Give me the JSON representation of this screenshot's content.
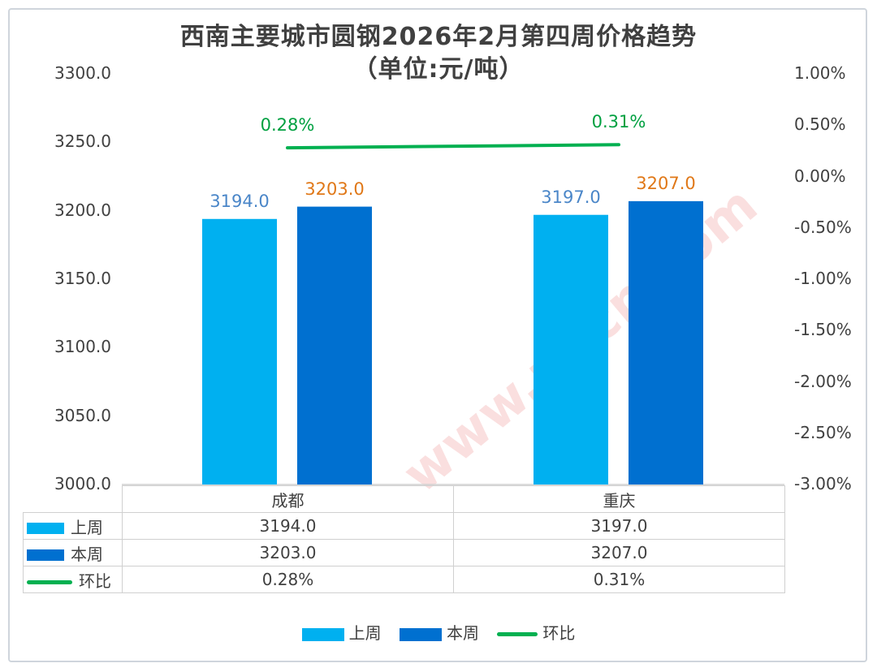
{
  "title_line1": "西南主要城市圆钢2026年2月第四周价格趋势",
  "title_line2": "（单位:元/吨）",
  "colors": {
    "last_week": "#00b0f0",
    "this_week": "#0070d0",
    "mom": "#00b050",
    "label_last": "#4a86c8",
    "label_this": "#e07818",
    "label_mom": "#00a040"
  },
  "chart_data": {
    "type": "bar",
    "categories": [
      "成都",
      "重庆"
    ],
    "series": [
      {
        "name": "上周",
        "values": [
          3194.0,
          3197.0
        ],
        "labels": [
          "3194.0",
          "3197.0"
        ]
      },
      {
        "name": "本周",
        "values": [
          3203.0,
          3207.0
        ],
        "labels": [
          "3203.0",
          "3207.0"
        ]
      }
    ],
    "line_series": {
      "name": "环比",
      "values": [
        0.28,
        0.31
      ],
      "labels": [
        "0.28%",
        "0.31%"
      ],
      "axis": "right"
    },
    "ylim": [
      3000,
      3300
    ],
    "yticks": [
      "3300.0",
      "3250.0",
      "3200.0",
      "3150.0",
      "3100.0",
      "3050.0",
      "3000.0"
    ],
    "y2lim": [
      -3.0,
      1.0
    ],
    "y2ticks": [
      "1.00%",
      "0.50%",
      "0.00%",
      "-0.50%",
      "-1.00%",
      "-1.50%",
      "-2.00%",
      "-2.50%",
      "-3.00%"
    ],
    "grid": false,
    "legend_position": "bottom"
  },
  "table": {
    "header": [
      "成都",
      "重庆"
    ],
    "rows": [
      {
        "label": "上周",
        "values": [
          "3194.0",
          "3197.0"
        ]
      },
      {
        "label": "本周",
        "values": [
          "3203.0",
          "3207.0"
        ]
      },
      {
        "label": "环比",
        "values": [
          "0.28%",
          "0.31%"
        ]
      }
    ]
  },
  "legend": [
    "上周",
    "本周",
    "环比"
  ],
  "watermark": "www.zjtcn.com"
}
